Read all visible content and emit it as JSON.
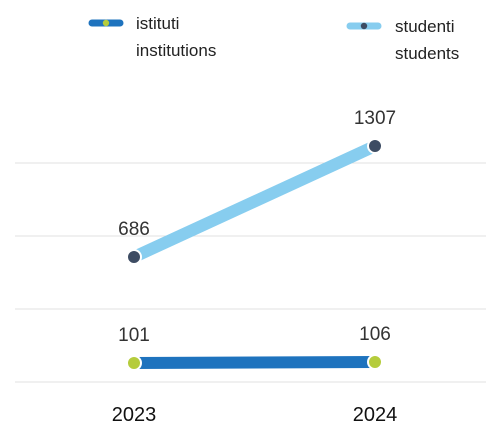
{
  "chart_data": {
    "type": "line",
    "categories": [
      "2023",
      "2024"
    ],
    "series": [
      {
        "key": "institutions",
        "name_it": "istituti",
        "name_en": "institutions",
        "values": [
          101,
          106
        ],
        "line_color": "#1e73be",
        "marker_color": "#b5cc3c"
      },
      {
        "key": "students",
        "name_it": "studenti",
        "name_en": "students",
        "values": [
          686,
          1307
        ],
        "line_color": "#87cdef",
        "marker_color": "#3d4c63"
      }
    ],
    "title": "",
    "xlabel": "",
    "ylabel": "",
    "legend": "top",
    "grid": true
  }
}
